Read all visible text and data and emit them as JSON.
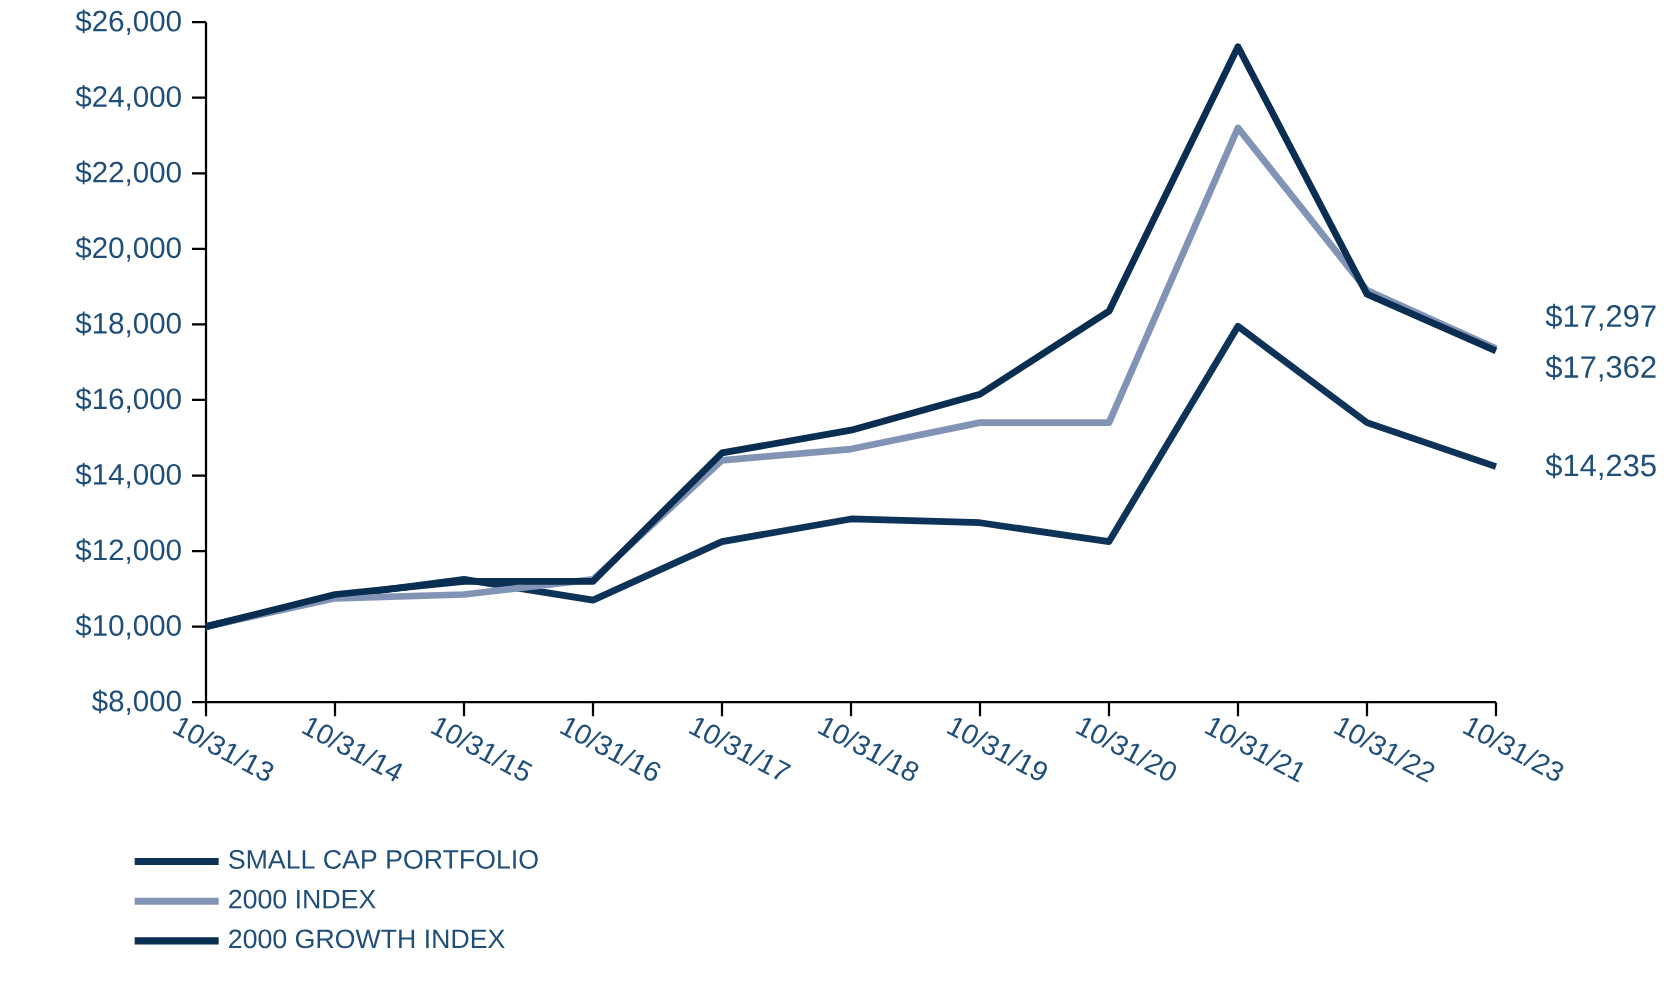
{
  "chart_data": {
    "type": "line",
    "categories": [
      "10/31/13",
      "10/31/14",
      "10/31/15",
      "10/31/16",
      "10/31/17",
      "10/31/18",
      "10/31/19",
      "10/31/20",
      "10/31/21",
      "10/31/22",
      "10/31/23"
    ],
    "series": [
      {
        "name": "SMALL CAP PORTFOLIO",
        "color": "#0d3358",
        "line_style": "solid",
        "values": [
          10000,
          10800,
          11250,
          10700,
          12250,
          12850,
          12750,
          12250,
          17950,
          15400,
          14235
        ],
        "value_labels": [
          null,
          null,
          null,
          null,
          null,
          null,
          null,
          null,
          null,
          null,
          "$14,235"
        ]
      },
      {
        "name": "2000 INDEX",
        "color": "#8294b5",
        "line_style": "solid",
        "values": [
          10000,
          10750,
          10850,
          11250,
          14400,
          14700,
          15400,
          15400,
          23200,
          18900,
          17362
        ],
        "value_labels": [
          null,
          null,
          null,
          null,
          null,
          null,
          null,
          null,
          null,
          null,
          "$17,362"
        ]
      },
      {
        "name": "2000 GROWTH INDEX",
        "color": "#0a2d52",
        "line_style": "solid",
        "values": [
          10000,
          10850,
          11200,
          11200,
          14600,
          15200,
          16150,
          18350,
          25350,
          18800,
          17297
        ],
        "value_labels": [
          null,
          null,
          null,
          null,
          null,
          null,
          null,
          null,
          null,
          null,
          "$17,297"
        ]
      }
    ],
    "ylim": [
      8000,
      26000
    ],
    "yticks": [
      {
        "value": 8000,
        "label": "$8,000"
      },
      {
        "value": 10000,
        "label": "$10,000"
      },
      {
        "value": 12000,
        "label": "$12,000"
      },
      {
        "value": 14000,
        "label": "$14,000"
      },
      {
        "value": 16000,
        "label": "$16,000"
      },
      {
        "value": 18000,
        "label": "$18,000"
      },
      {
        "value": 20000,
        "label": "$20,000"
      },
      {
        "value": 22000,
        "label": "$22,000"
      },
      {
        "value": 24000,
        "label": "$24,000"
      },
      {
        "value": 26000,
        "label": "$26,000"
      }
    ],
    "grid": false,
    "legend": "bottom left"
  }
}
